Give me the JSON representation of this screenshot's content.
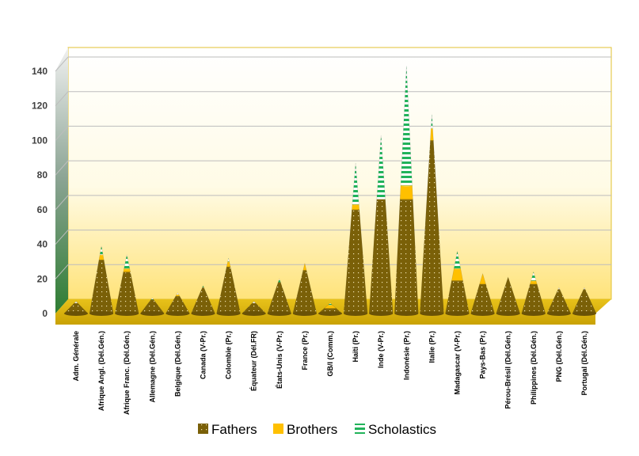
{
  "chart_data": {
    "type": "bar",
    "stacked": true,
    "categories": [
      "Adm. Générale",
      "Afrique Angl. (Dél.Gén.)",
      "Afrique Franc. (Dél.Gén.)",
      "Allemagne (Dél.Gén.)",
      "Belgique (Dél.Gén.)",
      "Canada (V-Pr.)",
      "Colombie (Pr.)",
      "Équateur (Dél.FR)",
      "États-Unis (V-Pr.)",
      "France (Pr.)",
      "GB/I (Comm.)",
      "Haïti (Pr.)",
      "Inde (V-Pr.)",
      "Indonésie (Pr.)",
      "Italie (Pr.)",
      "Madagascar (V-Pr.)",
      "Pays-Bas (Pr.)",
      "Pérou-Brésil (Dél.Gén.)",
      "Philippines (Dél.Gén.)",
      "PNG (Dél.Gén.)",
      "Portugal (Dél.Gén.)"
    ],
    "series": [
      {
        "name": "Fathers",
        "color": "#7a6008",
        "values": [
          6,
          31,
          24,
          8,
          10,
          15,
          27,
          6,
          18,
          25,
          3,
          60,
          66,
          66,
          100,
          19,
          17,
          21,
          17,
          14,
          14
        ]
      },
      {
        "name": "Brothers",
        "color": "#ffc000",
        "values": [
          0,
          3,
          2,
          0,
          1,
          0,
          3,
          0,
          0,
          4,
          2,
          3,
          0,
          8,
          7,
          7,
          6,
          0,
          2,
          0,
          0
        ]
      },
      {
        "name": "Scholastics",
        "color": "#21b35a",
        "values": [
          1,
          5,
          8,
          1,
          1,
          1,
          2,
          1,
          2,
          0,
          1,
          24,
          37,
          69,
          8,
          10,
          0,
          0,
          5,
          1,
          1
        ]
      }
    ],
    "yticks": [
      0,
      20,
      40,
      60,
      80,
      100,
      120,
      140
    ],
    "ylim": [
      0,
      140
    ],
    "legend": "bottom",
    "grid": true,
    "title": "",
    "xlabel": "",
    "ylabel": ""
  }
}
